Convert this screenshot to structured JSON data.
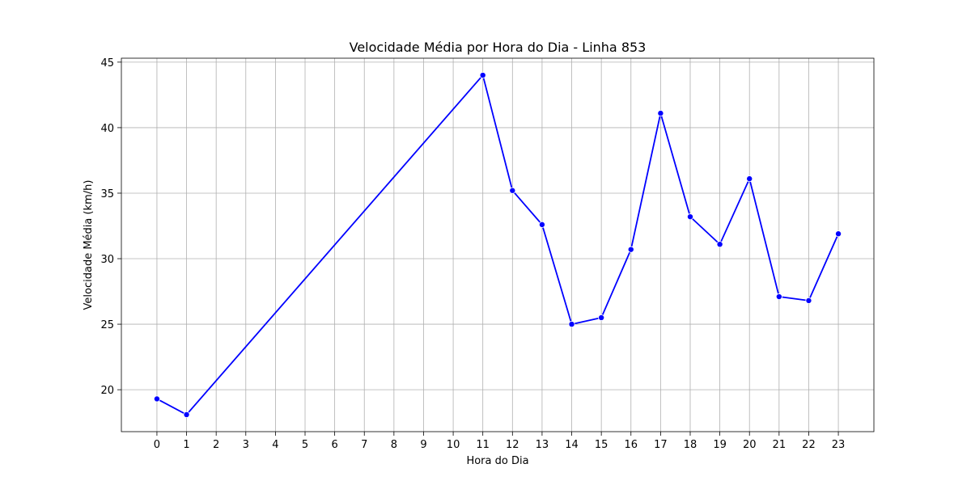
{
  "chart_data": {
    "type": "line",
    "title": "Velocidade Média por Hora do Dia - Linha 853",
    "xlabel": "Hora do Dia",
    "ylabel": "Velocidade Média (km/h)",
    "x_ticks": [
      0,
      1,
      2,
      3,
      4,
      5,
      6,
      7,
      8,
      9,
      10,
      11,
      12,
      13,
      14,
      15,
      16,
      17,
      18,
      19,
      20,
      21,
      22,
      23
    ],
    "y_ticks": [
      20,
      25,
      30,
      35,
      40,
      45
    ],
    "xlim": [
      -1.2,
      24.2
    ],
    "ylim": [
      16.8,
      45.3
    ],
    "grid": true,
    "series": [
      {
        "color": "#0000ff",
        "marker": "circle",
        "points": [
          {
            "x": 0,
            "y": 19.3
          },
          {
            "x": 1,
            "y": 18.1
          },
          {
            "x": 11,
            "y": 44.0
          },
          {
            "x": 12,
            "y": 35.2
          },
          {
            "x": 13,
            "y": 32.6
          },
          {
            "x": 14,
            "y": 25.0
          },
          {
            "x": 15,
            "y": 25.5
          },
          {
            "x": 16,
            "y": 30.7
          },
          {
            "x": 17,
            "y": 41.1
          },
          {
            "x": 18,
            "y": 33.2
          },
          {
            "x": 19,
            "y": 31.1
          },
          {
            "x": 20,
            "y": 36.1
          },
          {
            "x": 21,
            "y": 27.1
          },
          {
            "x": 22,
            "y": 26.8
          },
          {
            "x": 23,
            "y": 31.9
          }
        ]
      }
    ]
  }
}
